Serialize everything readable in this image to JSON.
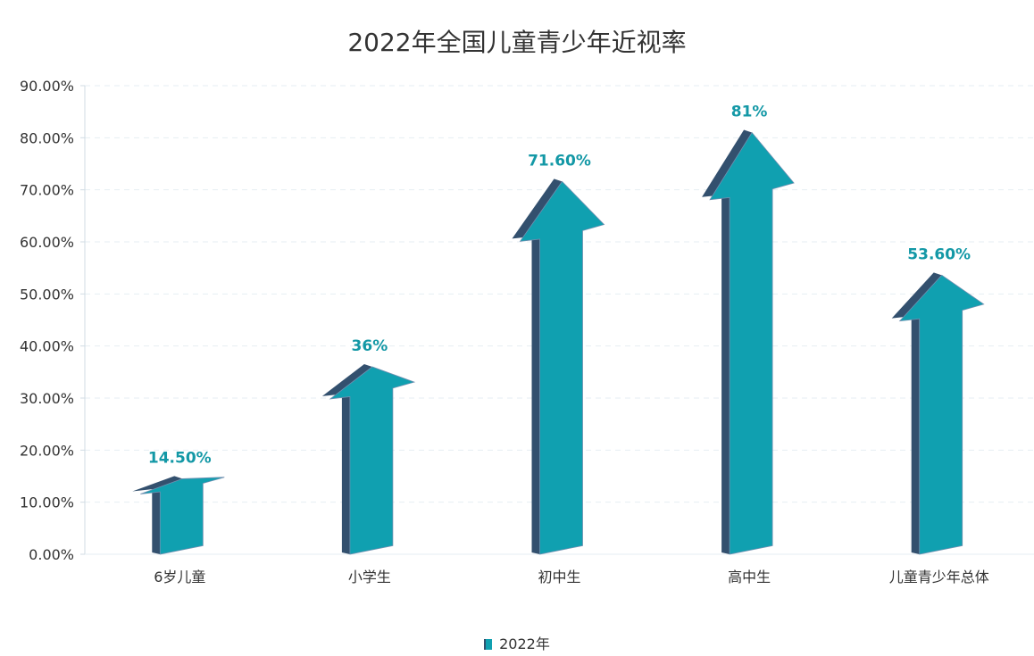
{
  "chart_data": {
    "type": "bar",
    "title": "2022年全国儿童青少年近视率",
    "categories": [
      "6岁儿童",
      "小学生",
      "初中生",
      "高中生",
      "儿童青少年总体"
    ],
    "series": [
      {
        "name": "2022年",
        "values": [
          14.5,
          36,
          71.6,
          81,
          53.6
        ]
      }
    ],
    "data_labels": [
      "14.50%",
      "36%",
      "71.60%",
      "81%",
      "53.60%"
    ],
    "yticks": [
      "0.00%",
      "10.00%",
      "20.00%",
      "30.00%",
      "40.00%",
      "50.00%",
      "60.00%",
      "70.00%",
      "80.00%",
      "90.00%"
    ],
    "ylim": [
      0,
      90
    ],
    "xlabel": "",
    "ylabel": "",
    "grid": true,
    "legend_position": "bottom",
    "mark_style": "3d-arrow",
    "colors": {
      "front": "#10a0b0",
      "side": "#33506e",
      "label": "#1398a6"
    }
  }
}
